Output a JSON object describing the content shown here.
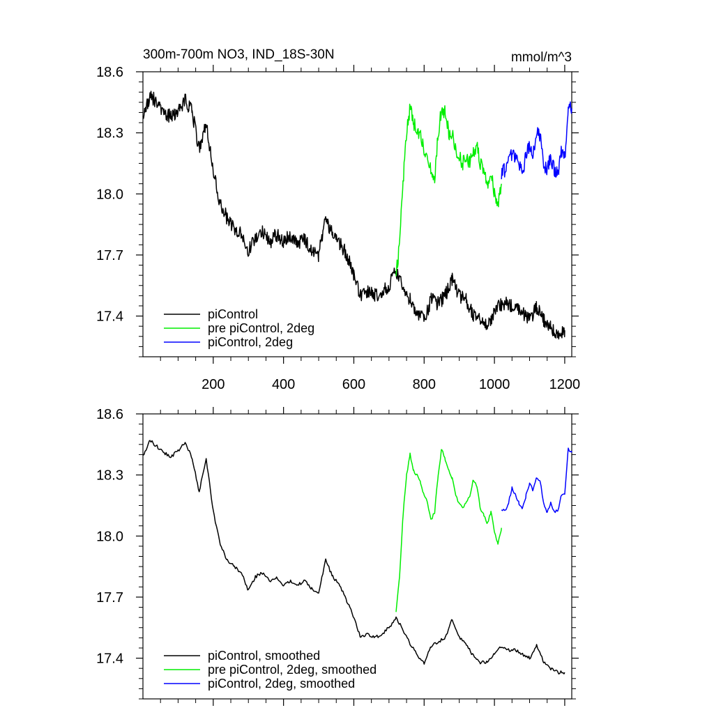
{
  "chart_data": [
    {
      "type": "line",
      "title": "300m-700m NO3, IND_18S-30N",
      "units": "mmol/m^3",
      "xlim": [
        0,
        1220
      ],
      "ylim": [
        17.2,
        18.6
      ],
      "xticks": [
        200,
        400,
        600,
        800,
        1000,
        1200
      ],
      "xtick_labels": [
        "200",
        "400",
        "600",
        "800",
        "1000",
        "1200"
      ],
      "yticks": [
        17.4,
        17.7,
        18.0,
        18.3,
        18.6
      ],
      "ytick_labels": [
        "17.4",
        "17.7",
        "18.0",
        "18.3",
        "18.6"
      ],
      "legend_position": "bottom-left",
      "series": [
        {
          "name": "piControl",
          "color": "#000000",
          "x": [
            0,
            20,
            40,
            60,
            80,
            100,
            120,
            140,
            160,
            180,
            200,
            220,
            240,
            260,
            280,
            300,
            320,
            340,
            360,
            380,
            400,
            420,
            440,
            460,
            480,
            500,
            520,
            540,
            560,
            580,
            600,
            620,
            640,
            660,
            680,
            700,
            720,
            740,
            760,
            780,
            800,
            820,
            840,
            860,
            880,
            900,
            920,
            940,
            960,
            980,
            1000,
            1020,
            1040,
            1060,
            1080,
            1100,
            1120,
            1140,
            1160,
            1180,
            1200
          ],
          "y": [
            18.36,
            18.48,
            18.45,
            18.4,
            18.38,
            18.4,
            18.46,
            18.4,
            18.22,
            18.35,
            18.12,
            17.95,
            17.88,
            17.82,
            17.8,
            17.72,
            17.78,
            17.82,
            17.76,
            17.8,
            17.76,
            17.8,
            17.75,
            17.78,
            17.72,
            17.7,
            17.88,
            17.8,
            17.76,
            17.7,
            17.6,
            17.5,
            17.52,
            17.5,
            17.52,
            17.55,
            17.62,
            17.55,
            17.48,
            17.42,
            17.38,
            17.48,
            17.46,
            17.5,
            17.58,
            17.5,
            17.48,
            17.4,
            17.38,
            17.36,
            17.42,
            17.46,
            17.46,
            17.44,
            17.42,
            17.38,
            17.44,
            17.38,
            17.34,
            17.32,
            17.33
          ]
        },
        {
          "name": "pre piControl, 2deg",
          "color": "#00ee00",
          "x": [
            720,
            730,
            740,
            750,
            760,
            770,
            780,
            790,
            800,
            810,
            820,
            830,
            840,
            850,
            860,
            870,
            880,
            890,
            900,
            910,
            920,
            930,
            940,
            950,
            960,
            970,
            980,
            990,
            1000,
            1010,
            1020
          ],
          "y": [
            17.6,
            17.75,
            18.05,
            18.3,
            18.42,
            18.35,
            18.3,
            18.28,
            18.22,
            18.18,
            18.12,
            18.08,
            18.3,
            18.42,
            18.4,
            18.3,
            18.3,
            18.22,
            18.18,
            18.15,
            18.18,
            18.15,
            18.2,
            18.25,
            18.15,
            18.1,
            18.05,
            18.12,
            18.0,
            17.95,
            18.05
          ]
        },
        {
          "name": "piControl, 2deg",
          "color": "#0000ff",
          "x": [
            1020,
            1030,
            1040,
            1050,
            1060,
            1070,
            1080,
            1090,
            1100,
            1110,
            1120,
            1130,
            1140,
            1150,
            1160,
            1170,
            1180,
            1190,
            1200,
            1210,
            1220
          ],
          "y": [
            18.1,
            18.12,
            18.16,
            18.2,
            18.18,
            18.15,
            18.1,
            18.2,
            18.24,
            18.2,
            18.3,
            18.28,
            18.15,
            18.12,
            18.18,
            18.12,
            18.1,
            18.2,
            18.18,
            18.42,
            18.42
          ]
        }
      ]
    },
    {
      "type": "line",
      "xlim": [
        0,
        1220
      ],
      "ylim": [
        17.2,
        18.6
      ],
      "xticks": [
        200,
        400,
        600,
        800,
        1000,
        1200
      ],
      "yticks": [
        17.4,
        17.7,
        18.0,
        18.3,
        18.6
      ],
      "ytick_labels": [
        "17.4",
        "17.7",
        "18.0",
        "18.3",
        "18.6"
      ],
      "legend_position": "bottom-left",
      "series": [
        {
          "name": "piControl, smoothed",
          "color": "#000000",
          "x": [
            0,
            20,
            40,
            60,
            80,
            100,
            120,
            140,
            160,
            180,
            200,
            220,
            240,
            260,
            280,
            300,
            320,
            340,
            360,
            380,
            400,
            420,
            440,
            460,
            480,
            500,
            520,
            540,
            560,
            580,
            600,
            620,
            640,
            660,
            680,
            700,
            720,
            740,
            760,
            780,
            800,
            820,
            840,
            860,
            880,
            900,
            920,
            940,
            960,
            980,
            1000,
            1020,
            1040,
            1060,
            1080,
            1100,
            1120,
            1140,
            1160,
            1180,
            1200
          ],
          "y": [
            18.39,
            18.47,
            18.44,
            18.41,
            18.39,
            18.42,
            18.46,
            18.38,
            18.22,
            18.38,
            18.12,
            17.96,
            17.88,
            17.85,
            17.82,
            17.73,
            17.8,
            17.82,
            17.78,
            17.8,
            17.76,
            17.78,
            17.76,
            17.78,
            17.74,
            17.72,
            17.88,
            17.8,
            17.76,
            17.68,
            17.6,
            17.5,
            17.52,
            17.5,
            17.52,
            17.55,
            17.6,
            17.54,
            17.47,
            17.42,
            17.37,
            17.46,
            17.48,
            17.5,
            17.59,
            17.5,
            17.47,
            17.41,
            17.38,
            17.38,
            17.42,
            17.46,
            17.44,
            17.44,
            17.42,
            17.4,
            17.46,
            17.38,
            17.35,
            17.33,
            17.33
          ]
        },
        {
          "name": "pre piControl, 2deg, smoothed",
          "color": "#00ee00",
          "x": [
            720,
            730,
            740,
            750,
            760,
            770,
            780,
            790,
            800,
            810,
            820,
            830,
            840,
            850,
            860,
            870,
            880,
            890,
            900,
            910,
            920,
            930,
            940,
            950,
            960,
            970,
            980,
            990,
            1000,
            1010,
            1020
          ],
          "y": [
            17.62,
            17.8,
            18.1,
            18.3,
            18.4,
            18.32,
            18.3,
            18.26,
            18.2,
            18.16,
            18.08,
            18.12,
            18.3,
            18.43,
            18.38,
            18.32,
            18.28,
            18.2,
            18.16,
            18.14,
            18.17,
            18.2,
            18.28,
            18.24,
            18.14,
            18.1,
            18.06,
            18.12,
            18.02,
            17.96,
            18.04
          ]
        },
        {
          "name": "piControl, 2deg, smoothed",
          "color": "#0000ff",
          "x": [
            1020,
            1030,
            1040,
            1050,
            1060,
            1070,
            1080,
            1090,
            1100,
            1110,
            1120,
            1130,
            1140,
            1150,
            1160,
            1170,
            1180,
            1190,
            1200,
            1210,
            1220
          ],
          "y": [
            18.13,
            18.12,
            18.16,
            18.24,
            18.2,
            18.16,
            18.14,
            18.2,
            18.26,
            18.22,
            18.29,
            18.27,
            18.16,
            18.12,
            18.16,
            18.12,
            18.12,
            18.2,
            18.2,
            18.43,
            18.41
          ]
        }
      ]
    }
  ]
}
